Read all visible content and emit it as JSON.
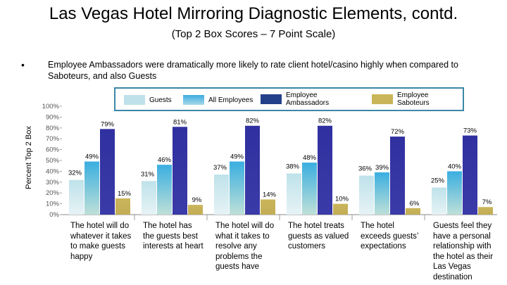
{
  "title": "Las Vegas Hotel Mirroring Diagnostic Elements, contd.",
  "subtitle": "(Top 2 Box Scores – 7 Point Scale)",
  "bullet": {
    "marker": "•",
    "text": "Employee Ambassadors were dramatically more likely to rate client hotel/casino highly when compared to Saboteurs, and also Guests"
  },
  "colors": {
    "guests": "#bfe2ea",
    "all_employees": "#3aaee0",
    "ambassadors": "#3030a0",
    "saboteurs": "#c9b55a",
    "legend_border": "#3b87a8"
  },
  "chart_data": {
    "type": "bar",
    "ylabel": "Percent Top 2 Box",
    "ylim": [
      0,
      100
    ],
    "yticks": [
      "0%",
      "10%",
      "20%",
      "30%",
      "40%",
      "50%",
      "60%",
      "70%",
      "80%",
      "90%",
      "100%"
    ],
    "legend": {
      "placement": "top",
      "entries": [
        "Guests",
        "All Employees",
        "Employee Ambassadors",
        "Employee Saboteurs"
      ]
    },
    "categories": [
      "The hotel will do whatever it takes to make guests happy",
      "The hotel has the guests best interests at heart",
      "The hotel will do what it takes to resolve any problems the guests have",
      "The hotel treats guests as valued customers",
      "The hotel exceeds guests’ expectations",
      "Guests feel they have a personal relationship with the hotel as their Las Vegas destination"
    ],
    "series": [
      {
        "name": "Guests",
        "values": [
          32,
          31,
          37,
          38,
          36,
          25
        ]
      },
      {
        "name": "All Employees",
        "values": [
          49,
          46,
          49,
          48,
          39,
          40
        ]
      },
      {
        "name": "Employee Ambassadors",
        "values": [
          79,
          81,
          82,
          82,
          72,
          73
        ]
      },
      {
        "name": "Employee Saboteurs",
        "values": [
          15,
          9,
          14,
          10,
          6,
          7
        ]
      }
    ]
  }
}
